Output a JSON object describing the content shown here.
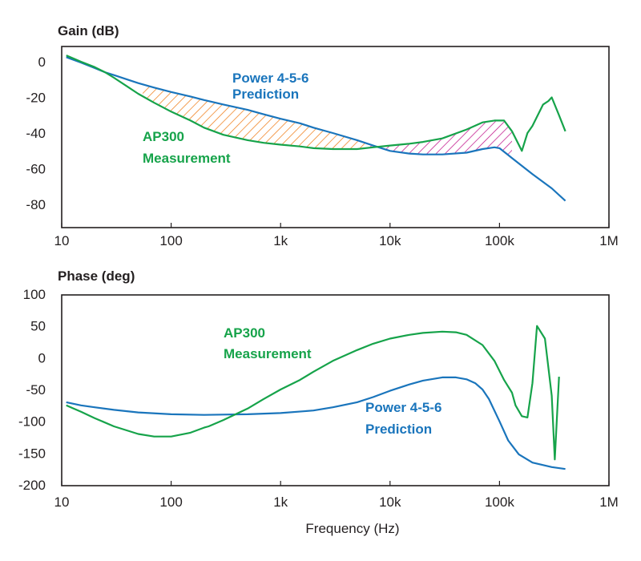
{
  "colors": {
    "prediction": "#1a75bc",
    "measurement": "#16a34a",
    "hatch_orange": "#f07f1c",
    "hatch_magenta": "#c1168c",
    "frame": "#231f20"
  },
  "chart_data": [
    {
      "type": "line",
      "title": "Gain (dB)",
      "xscale": "log",
      "xlim": [
        10,
        1000000
      ],
      "ylim": [
        -90,
        5
      ],
      "xticks": [
        10,
        100,
        1000,
        10000,
        100000,
        1000000
      ],
      "xtick_labels": [
        "10",
        "100",
        "1k",
        "10k",
        "100k",
        "1M"
      ],
      "yticks": [
        0,
        -20,
        -40,
        -60,
        -80
      ],
      "ytick_labels": [
        "0",
        "-20",
        "-40",
        "-60",
        "-80"
      ],
      "annotations": [
        {
          "lines": [
            "Power 4-5-6",
            "Prediction"
          ],
          "series": "prediction"
        },
        {
          "lines": [
            "AP300",
            "Measurement"
          ],
          "series": "measurement"
        }
      ],
      "series": [
        {
          "name": "Power 4-5-6 Prediction",
          "x": [
            11,
            15,
            20,
            25,
            30,
            40,
            50,
            70,
            100,
            150,
            200,
            300,
            500,
            700,
            1000,
            1500,
            2000,
            3000,
            5000,
            7000,
            10000,
            15000,
            20000,
            30000,
            50000,
            70000,
            90000,
            100000,
            130000,
            200000,
            300000,
            400000
          ],
          "y": [
            2.5,
            -0.5,
            -3.5,
            -6,
            -7.5,
            -10,
            -12,
            -14.5,
            -17,
            -19.5,
            -21.5,
            -24,
            -27,
            -29.5,
            -32,
            -34.5,
            -37,
            -40,
            -44,
            -47,
            -50,
            -51.5,
            -52,
            -52,
            -51,
            -49,
            -48,
            -48.5,
            -54,
            -63,
            -71,
            -78
          ]
        },
        {
          "name": "AP300 Measurement",
          "x": [
            11,
            15,
            20,
            25,
            30,
            40,
            50,
            70,
            100,
            150,
            200,
            300,
            500,
            700,
            1000,
            1500,
            2000,
            3000,
            5000,
            7000,
            10000,
            15000,
            20000,
            30000,
            50000,
            70000,
            90000,
            110000,
            130000,
            160000,
            180000,
            200000,
            250000,
            280000,
            300000,
            350000,
            400000
          ],
          "y": [
            3.5,
            0,
            -3,
            -6,
            -9,
            -14,
            -18,
            -23,
            -28,
            -33,
            -37,
            -41,
            -44,
            -45.5,
            -46.5,
            -47.5,
            -48.5,
            -49,
            -49,
            -48,
            -47,
            -46,
            -45,
            -43,
            -38,
            -34,
            -33,
            -33,
            -39,
            -50,
            -40,
            -36,
            -24,
            -22,
            -20,
            -30,
            -39
          ]
        }
      ]
    },
    {
      "type": "line",
      "title": "Phase (deg)",
      "xlabel": "Frequency (Hz)",
      "xscale": "log",
      "xlim": [
        10,
        1000000
      ],
      "ylim": [
        -200,
        100
      ],
      "xticks": [
        10,
        100,
        1000,
        10000,
        100000,
        1000000
      ],
      "xtick_labels": [
        "10",
        "100",
        "1k",
        "10k",
        "100k",
        "1M"
      ],
      "yticks": [
        100,
        50,
        0,
        -50,
        -100,
        -150,
        -200
      ],
      "ytick_labels": [
        "100",
        "50",
        "0",
        "-50",
        "-100",
        "-150",
        "-200"
      ],
      "annotations": [
        {
          "lines": [
            "AP300",
            "Measurement"
          ],
          "series": "measurement"
        },
        {
          "lines": [
            "Power 4-5-6",
            "Prediction"
          ],
          "series": "prediction"
        }
      ],
      "series": [
        {
          "name": "Power 4-5-6 Prediction",
          "x": [
            11,
            15,
            20,
            30,
            50,
            100,
            200,
            300,
            500,
            1000,
            2000,
            3000,
            5000,
            7000,
            10000,
            15000,
            20000,
            30000,
            40000,
            50000,
            60000,
            70000,
            80000,
            100000,
            120000,
            150000,
            200000,
            300000,
            400000
          ],
          "y": [
            -70,
            -75,
            -78,
            -82,
            -86,
            -89,
            -90,
            -89.5,
            -89,
            -87,
            -83,
            -78,
            -70,
            -62,
            -52,
            -42,
            -36,
            -31,
            -31,
            -34,
            -40,
            -50,
            -65,
            -100,
            -130,
            -152,
            -165,
            -172,
            -175
          ]
        },
        {
          "name": "AP300 Measurement",
          "x": [
            11,
            15,
            20,
            30,
            50,
            70,
            100,
            150,
            200,
            220,
            300,
            500,
            700,
            1000,
            1500,
            2000,
            3000,
            5000,
            7000,
            10000,
            15000,
            20000,
            30000,
            40000,
            50000,
            70000,
            90000,
            110000,
            130000,
            140000,
            160000,
            180000,
            200000,
            220000,
            260000,
            300000,
            320000,
            350000
          ],
          "y": [
            -75,
            -85,
            -95,
            -108,
            -120,
            -124,
            -124,
            -118,
            -110,
            -108,
            -98,
            -80,
            -65,
            -50,
            -35,
            -22,
            -5,
            12,
            22,
            30,
            36,
            39,
            41,
            40,
            36,
            20,
            -5,
            -35,
            -55,
            -75,
            -92,
            -94,
            -40,
            50,
            30,
            -60,
            -160,
            -30
          ]
        }
      ]
    }
  ]
}
